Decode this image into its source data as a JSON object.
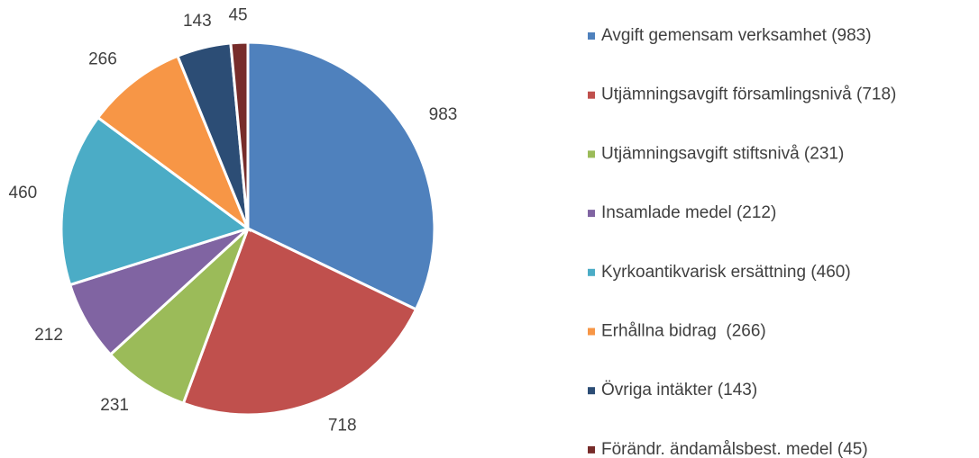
{
  "chart_data": {
    "type": "pie",
    "categories": [
      "Avgift gemensam verksamhet (983)",
      "Utjämningsavgift församlingsnivå (718)",
      "Utjämningsavgift stiftsnivå (231)",
      "Insamlade medel (212)",
      "Kyrkoantikvarisk ersättning (460)",
      "Erhållna bidrag  (266)",
      "Övriga intäkter (143)",
      "Förändr. ändamålsbest. medel (45)"
    ],
    "values": [
      983,
      718,
      231,
      212,
      460,
      266,
      143,
      45
    ],
    "colors": [
      "#4f81bd",
      "#c0504d",
      "#9bbb59",
      "#8064a2",
      "#4bacc6",
      "#f79646",
      "#2c4d75",
      "#772c2a"
    ],
    "legend": "right"
  }
}
